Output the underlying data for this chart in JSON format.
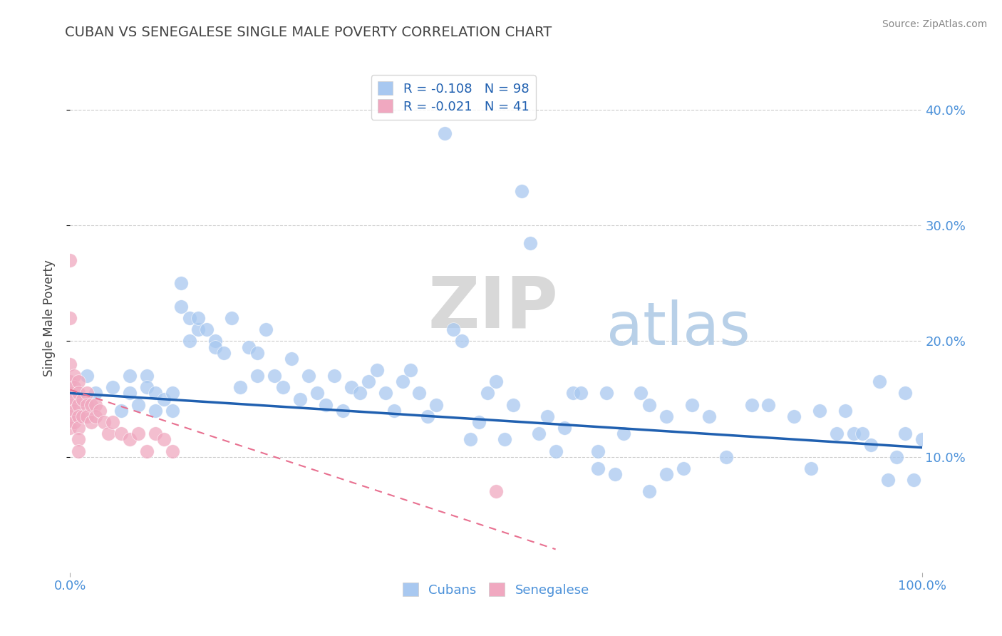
{
  "title": "CUBAN VS SENEGALESE SINGLE MALE POVERTY CORRELATION CHART",
  "source_text": "Source: ZipAtlas.com",
  "ylabel": "Single Male Poverty",
  "r_cuban": -0.108,
  "n_cuban": 98,
  "r_senegalese": -0.021,
  "n_senegalese": 41,
  "cuban_color": "#a8c8f0",
  "senegalese_color": "#f0a8c0",
  "trend_cuban_color": "#2060b0",
  "trend_senegalese_color": "#e87090",
  "background_color": "#ffffff",
  "xlim": [
    0.0,
    1.0
  ],
  "ylim": [
    0.0,
    0.44
  ],
  "yticks": [
    0.1,
    0.2,
    0.3,
    0.4
  ],
  "xticks": [
    0.0,
    1.0
  ],
  "cuban_x": [
    0.02,
    0.03,
    0.05,
    0.06,
    0.07,
    0.07,
    0.08,
    0.09,
    0.09,
    0.1,
    0.1,
    0.11,
    0.12,
    0.12,
    0.13,
    0.13,
    0.14,
    0.14,
    0.15,
    0.15,
    0.16,
    0.17,
    0.17,
    0.18,
    0.19,
    0.2,
    0.21,
    0.22,
    0.22,
    0.23,
    0.24,
    0.25,
    0.26,
    0.27,
    0.28,
    0.29,
    0.3,
    0.31,
    0.32,
    0.33,
    0.34,
    0.35,
    0.36,
    0.37,
    0.38,
    0.39,
    0.4,
    0.41,
    0.42,
    0.43,
    0.44,
    0.45,
    0.46,
    0.47,
    0.48,
    0.49,
    0.5,
    0.51,
    0.52,
    0.53,
    0.54,
    0.55,
    0.56,
    0.57,
    0.58,
    0.59,
    0.6,
    0.62,
    0.63,
    0.65,
    0.67,
    0.68,
    0.7,
    0.72,
    0.73,
    0.75,
    0.77,
    0.8,
    0.82,
    0.85,
    0.87,
    0.88,
    0.9,
    0.91,
    0.92,
    0.93,
    0.94,
    0.95,
    0.96,
    0.97,
    0.98,
    0.98,
    0.99,
    1.0,
    0.62,
    0.64,
    0.68,
    0.7
  ],
  "cuban_y": [
    0.17,
    0.155,
    0.16,
    0.14,
    0.17,
    0.155,
    0.145,
    0.17,
    0.16,
    0.155,
    0.14,
    0.15,
    0.14,
    0.155,
    0.25,
    0.23,
    0.22,
    0.2,
    0.21,
    0.22,
    0.21,
    0.2,
    0.195,
    0.19,
    0.22,
    0.16,
    0.195,
    0.19,
    0.17,
    0.21,
    0.17,
    0.16,
    0.185,
    0.15,
    0.17,
    0.155,
    0.145,
    0.17,
    0.14,
    0.16,
    0.155,
    0.165,
    0.175,
    0.155,
    0.14,
    0.165,
    0.175,
    0.155,
    0.135,
    0.145,
    0.38,
    0.21,
    0.2,
    0.115,
    0.13,
    0.155,
    0.165,
    0.115,
    0.145,
    0.33,
    0.285,
    0.12,
    0.135,
    0.105,
    0.125,
    0.155,
    0.155,
    0.105,
    0.155,
    0.12,
    0.155,
    0.145,
    0.135,
    0.09,
    0.145,
    0.135,
    0.1,
    0.145,
    0.145,
    0.135,
    0.09,
    0.14,
    0.12,
    0.14,
    0.12,
    0.12,
    0.11,
    0.165,
    0.08,
    0.1,
    0.155,
    0.12,
    0.08,
    0.115,
    0.09,
    0.085,
    0.07,
    0.085
  ],
  "senegalese_x": [
    0.0,
    0.0,
    0.0,
    0.0,
    0.0,
    0.0,
    0.0,
    0.0,
    0.005,
    0.005,
    0.005,
    0.005,
    0.005,
    0.01,
    0.01,
    0.01,
    0.01,
    0.01,
    0.01,
    0.01,
    0.015,
    0.015,
    0.02,
    0.02,
    0.02,
    0.025,
    0.025,
    0.03,
    0.03,
    0.035,
    0.04,
    0.045,
    0.05,
    0.06,
    0.07,
    0.08,
    0.09,
    0.1,
    0.11,
    0.12,
    0.5
  ],
  "senegalese_y": [
    0.27,
    0.22,
    0.18,
    0.165,
    0.155,
    0.145,
    0.135,
    0.125,
    0.17,
    0.16,
    0.15,
    0.14,
    0.13,
    0.165,
    0.155,
    0.145,
    0.135,
    0.125,
    0.115,
    0.105,
    0.15,
    0.135,
    0.155,
    0.145,
    0.135,
    0.145,
    0.13,
    0.145,
    0.135,
    0.14,
    0.13,
    0.12,
    0.13,
    0.12,
    0.115,
    0.12,
    0.105,
    0.12,
    0.115,
    0.105,
    0.07
  ],
  "trend_cuban_start_x": 0.0,
  "trend_cuban_end_x": 1.0,
  "trend_cuban_start_y": 0.155,
  "trend_cuban_end_y": 0.108,
  "trend_sene_start_x": 0.0,
  "trend_sene_end_x": 0.57,
  "trend_sene_start_y": 0.158,
  "trend_sene_end_y": 0.02
}
